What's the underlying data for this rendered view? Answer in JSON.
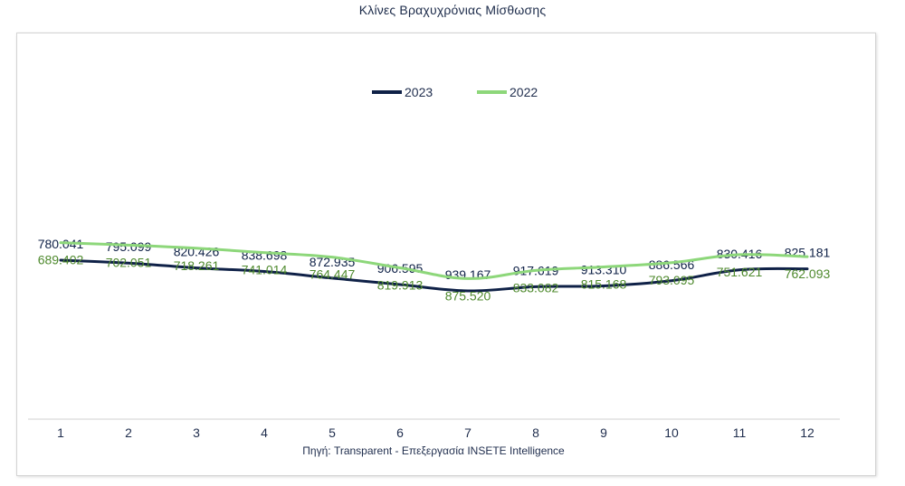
{
  "page": {
    "title": "Κλίνες Βραχυχρόνιας Μίσθωσης",
    "source": "Πηγή: Transparent  - Επεξεργασία INSETE Intelligence"
  },
  "colors": {
    "series_2023": "#0f2147",
    "series_2022": "#8dd77a",
    "label_2022": "#4f8a2e"
  },
  "chart_data": {
    "type": "line",
    "title": "Κλίνες Βραχυχρόνιας Μίσθωσης",
    "xlabel": "",
    "ylabel": "",
    "x": [
      "1",
      "2",
      "3",
      "4",
      "5",
      "6",
      "7",
      "8",
      "9",
      "10",
      "11",
      "12"
    ],
    "grid": false,
    "legend_position": "top-center",
    "series": [
      {
        "name": "2023",
        "values": [
          780041,
          795099,
          820426,
          838698,
          872935,
          906595,
          939167,
          917619,
          913310,
          886566,
          830416,
          825181
        ],
        "labels": [
          "780.041",
          "795.099",
          "820.426",
          "838.698",
          "872.935",
          "906.595",
          "939.167",
          "917.619",
          "913.310",
          "886.566",
          "830.416",
          "825.181"
        ]
      },
      {
        "name": "2022",
        "values": [
          689402,
          702051,
          718261,
          741014,
          764447,
          819913,
          875520,
          833082,
          815168,
          793095,
          751621,
          762093
        ],
        "labels": [
          "689.402",
          "702.051",
          "718.261",
          "741.014",
          "764.447",
          "819.913",
          "875.520",
          "833.082",
          "815.168",
          "793.095",
          "751.621",
          "762.093"
        ]
      }
    ]
  }
}
